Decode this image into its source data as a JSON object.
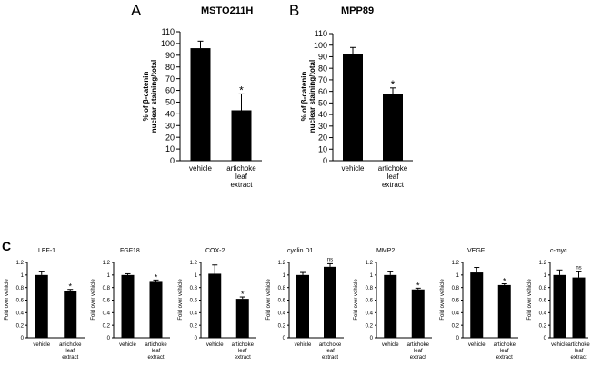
{
  "panel_letters": {
    "a": "A",
    "b": "B",
    "c": "C"
  },
  "colors": {
    "bar": "#000000",
    "axis": "#000000",
    "text": "#000000"
  },
  "chart_data": [
    {
      "type": "bar",
      "id": "msto211h",
      "title": "MSTO211H",
      "ylabel_lines": [
        "% of β-catenin",
        "nuclear staining/total"
      ],
      "ylim": [
        0,
        110
      ],
      "ytick_step": 10,
      "grid": false,
      "categories": [
        [
          "vehicle"
        ],
        [
          "artichoke",
          "leaf",
          "extract"
        ]
      ],
      "values": [
        96,
        43
      ],
      "errors": [
        6,
        14
      ],
      "annotations": [
        "",
        "*"
      ]
    },
    {
      "type": "bar",
      "id": "mpp89",
      "title": "MPP89",
      "ylabel_lines": [
        "% of β-catenin",
        "nuclear staining/total"
      ],
      "ylim": [
        0,
        110
      ],
      "ytick_step": 10,
      "grid": false,
      "categories": [
        [
          "vehicle"
        ],
        [
          "artichoke",
          "leaf",
          "extract"
        ]
      ],
      "values": [
        92,
        58
      ],
      "errors": [
        6,
        5
      ],
      "annotations": [
        "",
        "*"
      ]
    },
    {
      "type": "bar",
      "id": "lef1",
      "title": "LEF-1",
      "ylabel": "Fold over vehicle",
      "ylim": [
        0,
        1.2
      ],
      "yticks": [
        "0",
        "0.2",
        "0.4",
        "0.6",
        "0.8",
        "1",
        "1.2"
      ],
      "grid": false,
      "categories": [
        [
          "vehicle"
        ],
        [
          "artichoke",
          "leaf",
          "extract"
        ]
      ],
      "values": [
        1.0,
        0.75
      ],
      "errors": [
        0.05,
        0.02
      ],
      "annotations": [
        "",
        "*"
      ]
    },
    {
      "type": "bar",
      "id": "fgf18",
      "title": "FGF18",
      "ylabel": "Fold over vehicle",
      "ylim": [
        0,
        1.2
      ],
      "yticks": [
        "0",
        "0.2",
        "0.4",
        "0.6",
        "0.8",
        "1",
        "1.2"
      ],
      "grid": false,
      "categories": [
        [
          "vehicle"
        ],
        [
          "artichoke",
          "leaf",
          "extract"
        ]
      ],
      "values": [
        1.0,
        0.89
      ],
      "errors": [
        0.02,
        0.03
      ],
      "annotations": [
        "",
        "*"
      ]
    },
    {
      "type": "bar",
      "id": "cox2",
      "title": "COX-2",
      "ylabel": "Fold over vehicle",
      "ylim": [
        0,
        1.2
      ],
      "yticks": [
        "0",
        "0.2",
        "0.4",
        "0.6",
        "0.8",
        "1",
        "1.2"
      ],
      "grid": false,
      "categories": [
        [
          "vehicle"
        ],
        [
          "artichoke",
          "leaf",
          "extract"
        ]
      ],
      "values": [
        1.02,
        0.62
      ],
      "errors": [
        0.14,
        0.03
      ],
      "annotations": [
        "",
        "*"
      ]
    },
    {
      "type": "bar",
      "id": "cyclind1",
      "title": "cyclin D1",
      "ylabel": "Fold over vehicle",
      "ylim": [
        0,
        1.2
      ],
      "yticks": [
        "0",
        "0.2",
        "0.4",
        "0.6",
        "0.8",
        "1",
        "1.2"
      ],
      "grid": false,
      "categories": [
        [
          "vehicle"
        ],
        [
          "artichoke",
          "leaf",
          "extract"
        ]
      ],
      "values": [
        1.0,
        1.13
      ],
      "errors": [
        0.04,
        0.05
      ],
      "annotations": [
        "",
        "ns"
      ]
    },
    {
      "type": "bar",
      "id": "mmp2",
      "title": "MMP2",
      "ylabel": "Fold over vehicle",
      "ylim": [
        0,
        1.2
      ],
      "yticks": [
        "0",
        "0.2",
        "0.4",
        "0.6",
        "0.8",
        "1",
        "1.2"
      ],
      "grid": false,
      "categories": [
        [
          "vehicle"
        ],
        [
          "artichoke",
          "leaf",
          "extract"
        ]
      ],
      "values": [
        1.0,
        0.77
      ],
      "errors": [
        0.05,
        0.02
      ],
      "annotations": [
        "",
        "*"
      ]
    },
    {
      "type": "bar",
      "id": "vegf",
      "title": "VEGF",
      "ylabel": "Fold over vehicle",
      "ylim": [
        0,
        1.2
      ],
      "yticks": [
        "0",
        "0.2",
        "0.4",
        "0.6",
        "0.8",
        "1",
        "1.2"
      ],
      "grid": false,
      "categories": [
        [
          "vehicle"
        ],
        [
          "artichoke",
          "leaf",
          "extract"
        ]
      ],
      "values": [
        1.04,
        0.84
      ],
      "errors": [
        0.08,
        0.02
      ],
      "annotations": [
        "",
        "*"
      ]
    },
    {
      "type": "bar",
      "id": "cmyc",
      "title": "c-myc",
      "ylabel": "Fold over vehicle",
      "ylim": [
        0,
        1.2
      ],
      "yticks": [
        "0",
        "0.2",
        "0.4",
        "0.6",
        "0.8",
        "1",
        "1.2"
      ],
      "grid": false,
      "categories": [
        [
          "vehicle"
        ],
        [
          "artichoke",
          "leaf",
          "extract"
        ]
      ],
      "values": [
        1.0,
        0.96
      ],
      "errors": [
        0.08,
        0.09
      ],
      "annotations": [
        "",
        "ns"
      ]
    }
  ]
}
